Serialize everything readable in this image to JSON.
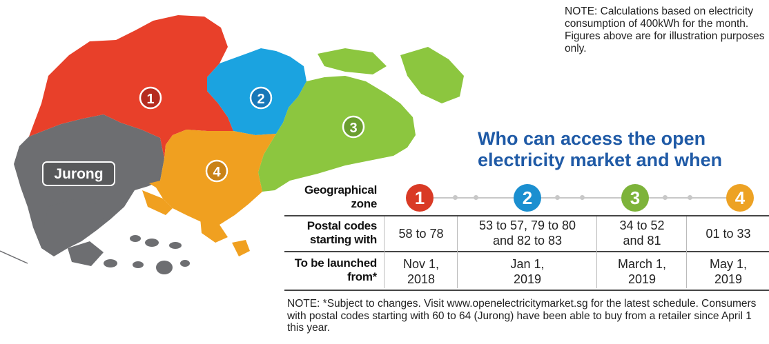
{
  "note_top": "NOTE: Calculations based on electricity consumption of 400kWh for the month. Figures above are for illustration purposes only.",
  "headline": {
    "line1": "Who can access the open",
    "line2": "electricity market and when"
  },
  "map": {
    "jurong_label": "Jurong",
    "zone_markers": [
      "1",
      "2",
      "3",
      "4"
    ],
    "colors": {
      "zone1": "#e8402a",
      "zone2": "#1ba3e0",
      "zone3": "#8cc63f",
      "zone4": "#f0a020",
      "jurong": "#6d6e71"
    }
  },
  "table": {
    "row_labels": {
      "zone": [
        "Geographical",
        "zone"
      ],
      "postal": [
        "Postal codes",
        "starting with"
      ],
      "launch": [
        "To be launched",
        "from*"
      ]
    },
    "zones": [
      {
        "number": "1",
        "color": "#d93a25",
        "postal": [
          "58 to 78"
        ],
        "launch": [
          "Nov 1,",
          "2018"
        ]
      },
      {
        "number": "2",
        "color": "#1b8fd0",
        "postal": [
          "53 to 57, 79 to 80",
          "and 82 to 83"
        ],
        "launch": [
          "Jan 1,",
          "2019"
        ]
      },
      {
        "number": "3",
        "color": "#7db33a",
        "postal": [
          "34 to 52",
          "and 81"
        ],
        "launch": [
          "March 1,",
          "2019"
        ]
      },
      {
        "number": "4",
        "color": "#eda224",
        "postal": [
          "01 to 33"
        ],
        "launch": [
          "May 1,",
          "2019"
        ]
      }
    ]
  },
  "note_bottom": "NOTE: *Subject to changes. Visit www.openelectricitymarket.sg for the latest schedule. Consumers with postal codes starting with 60 to 64 (Jurong) have been able to buy from a retailer since April 1 this year."
}
